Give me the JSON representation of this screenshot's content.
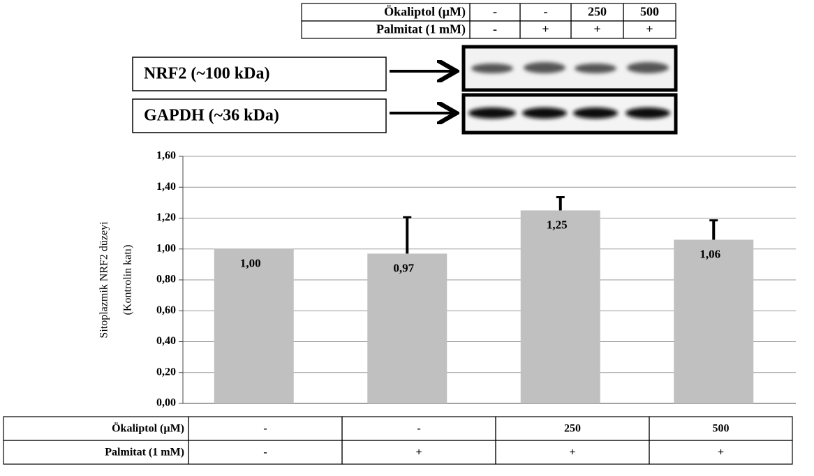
{
  "top_table": {
    "rows": [
      [
        "Ökaliptol (µM)",
        "-",
        "-",
        "250",
        "500"
      ],
      [
        "Palmitat (1 mM)",
        "-",
        "+",
        "+",
        "+"
      ]
    ]
  },
  "blot": {
    "labels": [
      "NRF2 (~100 kDa)",
      "GAPDH (~36 kDa)"
    ]
  },
  "chart_data": {
    "type": "bar",
    "ylabel": [
      "Sitoplazmik NRF2 düzeyi",
      "(Kontrolin katı)"
    ],
    "values": [
      1.0,
      0.97,
      1.25,
      1.06
    ],
    "value_labels": [
      "1,00",
      "0,97",
      "1,25",
      "1,06"
    ],
    "errors": [
      null,
      0.24,
      0.09,
      0.13
    ],
    "color": "#c0c0c0",
    "ylim": [
      0,
      1.6
    ],
    "yticks": [
      {
        "value": 0,
        "label": "0,00"
      },
      {
        "value": 0.2,
        "label": "0,20"
      },
      {
        "value": 0.4,
        "label": "0,40"
      },
      {
        "value": 0.6,
        "label": "0,60"
      },
      {
        "value": 0.8,
        "label": "0,80"
      },
      {
        "value": 1.0,
        "label": "1,00"
      },
      {
        "value": 1.2,
        "label": "1,20"
      },
      {
        "value": 1.4,
        "label": "1,40"
      },
      {
        "value": 1.6,
        "label": "1,60"
      }
    ],
    "grid": true
  },
  "bottom_table": {
    "rows": [
      [
        "Ökaliptol (µM)",
        "-",
        "-",
        "250",
        "500"
      ],
      [
        "Palmitat (1 mM)",
        "-",
        "+",
        "+",
        "+"
      ]
    ]
  }
}
